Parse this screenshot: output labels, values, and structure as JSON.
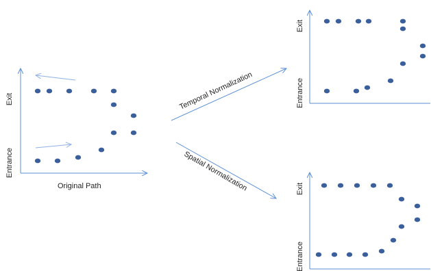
{
  "colors": {
    "point": "#3a5f9b",
    "axis": "#5b8fd6",
    "hint": "#8fb0e6"
  },
  "original": {
    "label": "Original Path",
    "ylabel_top": "Exit",
    "ylabel_bottom": "Entrance"
  },
  "temporal": {
    "label": "Temporal Normalization",
    "ylabel_top": "Exit",
    "ylabel_bottom": "Entrance"
  },
  "spatial": {
    "label": "Spatial Normalization",
    "ylabel_top": "Exit",
    "ylabel_bottom": "Entrance"
  }
}
